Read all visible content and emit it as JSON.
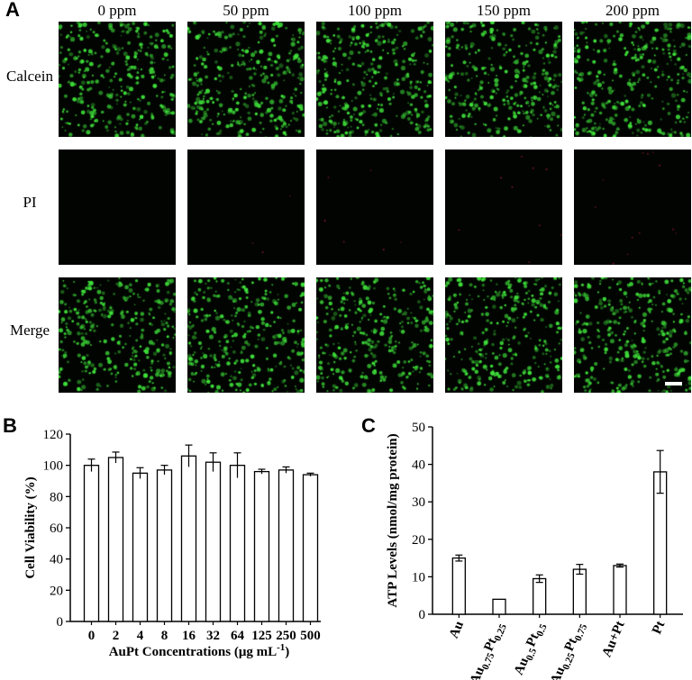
{
  "panels": {
    "a": "A",
    "b": "B",
    "c": "C"
  },
  "micrographs": {
    "columns": [
      "0 ppm",
      "50 ppm",
      "100 ppm",
      "150 ppm",
      "200 ppm"
    ],
    "rows": [
      "Calcein",
      "PI",
      "Merge"
    ],
    "colors": {
      "live": "#3fe03a",
      "dead": "#c8283c",
      "background": "#020402"
    }
  },
  "chart_data": [
    {
      "type": "bar",
      "panel": "B",
      "xlabel": "AuPt Concentrations (μg mL",
      "xlabel_sup": "-1",
      "xlabel_close": ")",
      "ylabel": "Cell Viability (%)",
      "ylim": [
        0,
        120
      ],
      "yticks": [
        0,
        20,
        40,
        60,
        80,
        100,
        120
      ],
      "categories": [
        "0",
        "2",
        "4",
        "8",
        "16",
        "32",
        "64",
        "125",
        "250",
        "500"
      ],
      "values": [
        100,
        105,
        95,
        97,
        106,
        102,
        100,
        96,
        97,
        94
      ],
      "errors": [
        4,
        3.5,
        3.5,
        3,
        7,
        6,
        8,
        1.5,
        2,
        1
      ]
    },
    {
      "type": "bar",
      "panel": "C",
      "ylabel": "ATP Levels (nmol/mg protein)",
      "ylim": [
        0,
        50
      ],
      "yticks": [
        0,
        10,
        20,
        30,
        40,
        50
      ],
      "categories": [
        {
          "parts": [
            [
              "Au",
              ""
            ]
          ]
        },
        {
          "parts": [
            [
              "Au",
              "0.75"
            ],
            [
              "Pt",
              "0.25"
            ]
          ]
        },
        {
          "parts": [
            [
              "Au",
              "0.5"
            ],
            [
              "Pt",
              "0.5"
            ]
          ]
        },
        {
          "parts": [
            [
              "Au",
              "0.25"
            ],
            [
              "Pt",
              "0.75"
            ]
          ]
        },
        {
          "parts": [
            [
              "Au+Pt",
              ""
            ]
          ]
        },
        {
          "parts": [
            [
              "Pt",
              ""
            ]
          ]
        }
      ],
      "values": [
        15,
        4,
        9.5,
        12,
        13,
        38
      ],
      "errors": [
        0.8,
        0,
        1,
        1.3,
        0.4,
        5.7
      ]
    }
  ]
}
